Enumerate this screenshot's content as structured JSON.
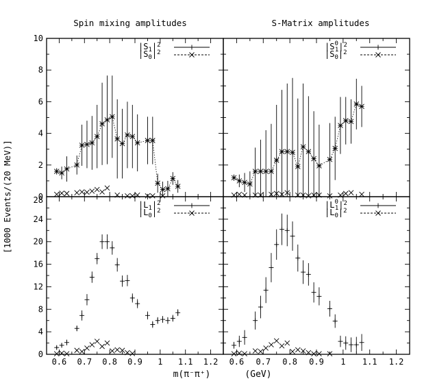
{
  "titles": {
    "left": "Spin mixing amplitudes",
    "right": "S-Matrix amplitudes"
  },
  "ylabel": "[1000 Events/(20 MeV)]",
  "xlabel_left": "m(π⁻π⁺)",
  "xlabel_right": "(GeV)",
  "chart_data": [
    {
      "type": "scatter",
      "panel": "top-left",
      "xlim": [
        0.55,
        1.25
      ],
      "ylim": [
        0,
        10
      ],
      "yticks": [
        0,
        2,
        4,
        6,
        8,
        10
      ],
      "ytick_labels": [
        "0",
        "2",
        "4",
        "6",
        "8",
        "10"
      ],
      "xticks": [],
      "xtick_labels": [],
      "legend": {
        "position": "top-right",
        "entries": [
          {
            "base": "|S",
            "sub": "1",
            "sup": "",
            "sq": "2",
            "style": "solid",
            "marker": "plus"
          },
          {
            "base": "|S",
            "sub": "0",
            "sup": "",
            "sq": "2",
            "style": "dashed",
            "marker": "x"
          }
        ]
      },
      "series": [
        {
          "style": "plus",
          "connect": false,
          "x": [],
          "y": [],
          "err": []
        },
        {
          "style": "star",
          "connect": true,
          "x": [
            0.59,
            0.61,
            0.63,
            0.67,
            0.69,
            0.71,
            0.73,
            0.75,
            0.77,
            0.79,
            0.81,
            0.83,
            0.85,
            0.87,
            0.89,
            0.91,
            0.95,
            0.97,
            0.99,
            1.01,
            1.03,
            1.05,
            1.07
          ],
          "y": [
            1.6,
            1.5,
            1.75,
            2.0,
            3.25,
            3.3,
            3.4,
            3.8,
            4.6,
            4.85,
            5.05,
            3.65,
            3.35,
            3.9,
            3.8,
            3.4,
            3.55,
            3.55,
            0.85,
            0.45,
            0.5,
            1.15,
            0.65
          ],
          "err": [
            0.2,
            0.4,
            0.8,
            0.6,
            1.3,
            1.5,
            1.7,
            2.0,
            2.6,
            2.8,
            2.6,
            2.5,
            2.2,
            2.1,
            2.0,
            1.8,
            1.5,
            1.5,
            0.6,
            0.5,
            0.5,
            0.4,
            0.4
          ]
        },
        {
          "style": "x",
          "connect": false,
          "x": [
            0.59,
            0.61,
            0.63,
            0.67,
            0.69,
            0.71,
            0.73,
            0.75,
            0.77,
            0.79,
            0.83,
            0.87,
            0.89,
            0.91,
            0.95,
            0.97,
            1.01
          ],
          "y": [
            0.15,
            0.22,
            0.2,
            0.25,
            0.3,
            0.28,
            0.35,
            0.45,
            0.3,
            0.55,
            0.1,
            0.05,
            0.05,
            0.1,
            0.05,
            0.05,
            0.05
          ],
          "err": [
            0,
            0,
            0,
            0,
            0,
            0,
            0,
            0,
            0,
            0,
            0,
            0,
            0,
            0,
            0,
            0,
            0
          ]
        }
      ]
    },
    {
      "type": "scatter",
      "panel": "top-right",
      "xlim": [
        0.55,
        1.25
      ],
      "ylim": [
        0,
        10
      ],
      "yticks": [
        0,
        2,
        4,
        6,
        8,
        10
      ],
      "ytick_labels": [],
      "xticks": [],
      "xtick_labels": [],
      "legend": {
        "position": "top-right",
        "entries": [
          {
            "base": "|S",
            "sub": "1",
            "sup": "0",
            "sq": "2",
            "style": "solid",
            "marker": "plus"
          },
          {
            "base": "|S",
            "sub": "0",
            "sup": "",
            "sq": "2",
            "style": "dashed",
            "marker": "x"
          }
        ]
      },
      "series": [
        {
          "style": "plus",
          "connect": false,
          "x": [],
          "y": [],
          "err": []
        },
        {
          "style": "star",
          "connect": true,
          "x": [
            0.59,
            0.61,
            0.63,
            0.65,
            0.67,
            0.69,
            0.71,
            0.73,
            0.75,
            0.77,
            0.79,
            0.81,
            0.83,
            0.85,
            0.87,
            0.89,
            0.91,
            0.95,
            0.97,
            0.99,
            1.01,
            1.03,
            1.05,
            1.07
          ],
          "y": [
            1.2,
            1.0,
            0.9,
            0.8,
            1.6,
            1.6,
            1.6,
            1.6,
            2.3,
            2.85,
            2.85,
            2.8,
            1.9,
            3.15,
            2.85,
            2.4,
            1.95,
            2.35,
            3.05,
            4.5,
            4.8,
            4.75,
            5.85,
            5.7
          ],
          "err": [
            0.2,
            0.4,
            0.6,
            0.8,
            1.5,
            2.0,
            2.6,
            3.0,
            3.5,
            3.9,
            4.3,
            4.7,
            4.3,
            4.0,
            3.5,
            3.0,
            2.6,
            2.3,
            2.0,
            1.8,
            1.5,
            1.4,
            1.6,
            1.3
          ]
        },
        {
          "style": "x",
          "connect": false,
          "x": [
            0.59,
            0.61,
            0.63,
            0.67,
            0.69,
            0.73,
            0.75,
            0.77,
            0.79,
            0.83,
            0.85,
            0.87,
            0.89,
            0.91,
            0.95,
            0.99,
            1.01,
            1.03,
            1.07
          ],
          "y": [
            0.1,
            0.15,
            0.1,
            0.1,
            0.1,
            0.15,
            0.2,
            0.15,
            0.25,
            0.1,
            0.1,
            0.05,
            0.1,
            0.1,
            0.05,
            0.1,
            0.2,
            0.25,
            0.15
          ],
          "err": [
            0,
            0,
            0,
            0,
            0,
            0,
            0,
            0,
            0,
            0,
            0,
            0,
            0,
            0,
            0,
            0,
            0,
            0,
            0
          ]
        }
      ]
    },
    {
      "type": "scatter",
      "panel": "bottom-left",
      "xlim": [
        0.55,
        1.25
      ],
      "ylim": [
        0,
        28
      ],
      "yticks": [
        0,
        4,
        8,
        12,
        16,
        20,
        24,
        28
      ],
      "ytick_labels": [
        "0",
        "4",
        "8",
        "12",
        "16",
        "20",
        "24",
        "28"
      ],
      "xticks": [
        0.6,
        0.7,
        0.8,
        0.9,
        1.0,
        1.1,
        1.2
      ],
      "xtick_labels": [
        "0.6",
        "0.7",
        "0.8",
        "0.9",
        "1",
        "1.1",
        "1.2"
      ],
      "legend": {
        "position": "top-right",
        "entries": [
          {
            "base": "|L",
            "sub": "1",
            "sup": "",
            "sq": "2",
            "style": "solid",
            "marker": "plus"
          },
          {
            "base": "|L",
            "sub": "0",
            "sup": "",
            "sq": "2",
            "style": "dashed",
            "marker": "x"
          }
        ]
      },
      "series": [
        {
          "style": "plus",
          "connect": false,
          "x": [
            0.59,
            0.61,
            0.63,
            0.67,
            0.69,
            0.71,
            0.73,
            0.75,
            0.77,
            0.79,
            0.81,
            0.83,
            0.85,
            0.87,
            0.89,
            0.91,
            0.95,
            0.97,
            0.99,
            1.01,
            1.03,
            1.05,
            1.07
          ],
          "y": [
            1.2,
            1.6,
            2.1,
            4.6,
            6.9,
            9.7,
            13.7,
            17.0,
            20.0,
            20.0,
            18.9,
            15.9,
            13.0,
            13.1,
            10.0,
            9.0,
            6.9,
            5.3,
            6.0,
            6.2,
            6.0,
            6.4,
            7.4
          ],
          "err": [
            0.3,
            0.4,
            0.5,
            0.5,
            0.9,
            1.0,
            1.0,
            1.0,
            1.3,
            1.3,
            1.2,
            1.2,
            1.0,
            1.0,
            0.8,
            0.8,
            0.7,
            0.6,
            0.6,
            0.6,
            0.6,
            0.6,
            0.6
          ]
        },
        {
          "style": "x",
          "connect": false,
          "x": [
            0.59,
            0.61,
            0.63,
            0.67,
            0.69,
            0.71,
            0.73,
            0.75,
            0.77,
            0.79,
            0.81,
            0.83,
            0.85,
            0.87,
            0.89
          ],
          "y": [
            0.1,
            0.2,
            0.1,
            0.7,
            0.5,
            1.1,
            1.7,
            2.3,
            1.4,
            2.0,
            0.6,
            0.8,
            0.7,
            0.3,
            0.15
          ],
          "err": [
            0,
            0,
            0,
            0,
            0,
            0,
            0,
            0,
            0,
            0,
            0,
            0,
            0,
            0,
            0
          ]
        }
      ]
    },
    {
      "type": "scatter",
      "panel": "bottom-right",
      "xlim": [
        0.55,
        1.25
      ],
      "ylim": [
        0,
        28
      ],
      "yticks": [
        0,
        4,
        8,
        12,
        16,
        20,
        24,
        28
      ],
      "ytick_labels": [],
      "xticks": [
        0.6,
        0.7,
        0.8,
        0.9,
        1.0,
        1.1,
        1.2
      ],
      "xtick_labels": [
        "0.6",
        "0.7",
        "0.8",
        "0.9",
        "1",
        "1.1",
        "1.2"
      ],
      "legend": {
        "position": "top-right",
        "entries": [
          {
            "base": "|L",
            "sub": "1",
            "sup": "0",
            "sq": "2",
            "style": "solid",
            "marker": "plus"
          },
          {
            "base": "|L",
            "sub": "0",
            "sup": "",
            "sq": "2",
            "style": "dashed",
            "marker": "x"
          }
        ]
      },
      "series": [
        {
          "style": "plus",
          "connect": false,
          "x": [
            0.59,
            0.61,
            0.63,
            0.67,
            0.69,
            0.71,
            0.73,
            0.75,
            0.77,
            0.79,
            0.81,
            0.83,
            0.85,
            0.87,
            0.89,
            0.91,
            0.95,
            0.97,
            0.99,
            1.01,
            1.03,
            1.05,
            1.07
          ],
          "y": [
            1.6,
            2.3,
            3.0,
            6.0,
            8.4,
            11.4,
            15.4,
            19.5,
            22.2,
            22.0,
            21.0,
            17.1,
            14.6,
            14.2,
            11.0,
            10.3,
            8.1,
            5.9,
            2.3,
            2.0,
            1.7,
            1.7,
            2.1
          ],
          "err": [
            0.6,
            1.0,
            1.3,
            1.6,
            2.0,
            2.3,
            2.6,
            2.7,
            2.8,
            2.8,
            2.6,
            2.4,
            2.1,
            2.0,
            1.8,
            1.6,
            1.4,
            1.2,
            1.0,
            1.2,
            1.3,
            1.4,
            1.5
          ]
        },
        {
          "style": "x",
          "connect": false,
          "x": [
            0.59,
            0.61,
            0.63,
            0.67,
            0.69,
            0.71,
            0.73,
            0.75,
            0.77,
            0.79,
            0.81,
            0.83,
            0.85,
            0.87,
            0.89,
            0.91,
            0.95
          ],
          "y": [
            0.1,
            0.2,
            0.1,
            0.6,
            0.5,
            1.1,
            1.7,
            2.4,
            1.5,
            2.0,
            0.5,
            0.8,
            0.6,
            0.3,
            0.1,
            0.1,
            0.1
          ],
          "err": [
            0,
            0,
            0,
            0,
            0,
            0,
            0,
            0,
            0,
            0,
            0,
            0,
            0,
            0,
            0,
            0,
            0
          ]
        }
      ]
    }
  ]
}
